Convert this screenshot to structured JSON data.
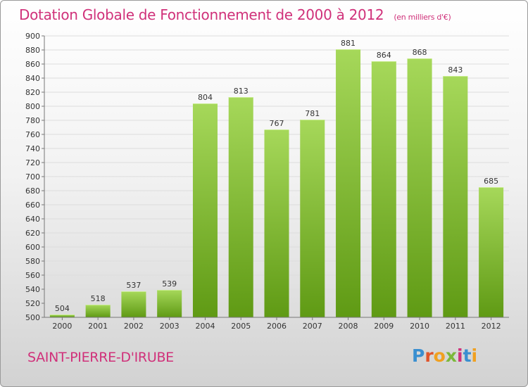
{
  "title": "Dotation Globale de Fonctionnement de 2000 à 2012",
  "unit": "(en milliers d'€)",
  "commune": "SAINT-PIERRE-D'IRUBE",
  "logo": {
    "text": "Proxiti",
    "letters": [
      {
        "ch": "P",
        "color": "#3a8fd0"
      },
      {
        "ch": "r",
        "color": "#e0542a"
      },
      {
        "ch": "o",
        "color": "#f0a020"
      },
      {
        "ch": "x",
        "color": "#7bb83a"
      },
      {
        "ch": "i",
        "color": "#d0317a"
      },
      {
        "ch": "t",
        "color": "#3a8fd0"
      },
      {
        "ch": "i",
        "color": "#f0a020"
      }
    ]
  },
  "colors": {
    "title": "#d0317a",
    "bar_top": "#a6d85a",
    "bar_bottom": "#5f9a14",
    "grid": "#dddddd",
    "axis_text": "#333333"
  },
  "chart_data": {
    "type": "bar",
    "title": "Dotation Globale de Fonctionnement de 2000 à 2012",
    "xlabel": "",
    "ylabel": "",
    "ylim": [
      500,
      900
    ],
    "ytick_step": 20,
    "grid": true,
    "categories": [
      "2000",
      "2001",
      "2002",
      "2003",
      "2004",
      "2005",
      "2006",
      "2007",
      "2008",
      "2009",
      "2010",
      "2011",
      "2012"
    ],
    "values": [
      504,
      518,
      537,
      539,
      804,
      813,
      767,
      781,
      881,
      864,
      868,
      843,
      685
    ]
  }
}
